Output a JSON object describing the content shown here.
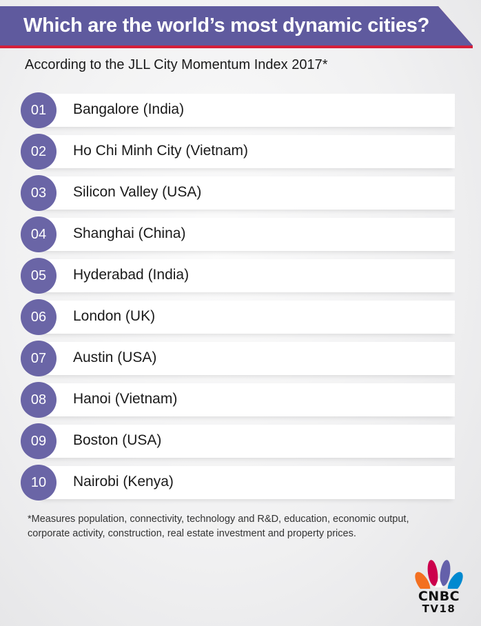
{
  "header": {
    "title": "Which are the world’s most dynamic cities?",
    "subtitle": "According to the JLL City Momentum Index 2017*",
    "banner_color": "#5f5a9e",
    "rule_color": "#d51f3a"
  },
  "ranking": [
    {
      "rank": "01",
      "city": "Bangalore (India)"
    },
    {
      "rank": "02",
      "city": "Ho Chi Minh City (Vietnam)"
    },
    {
      "rank": "03",
      "city": "Silicon Valley (USA)"
    },
    {
      "rank": "04",
      "city": "Shanghai (China)"
    },
    {
      "rank": "05",
      "city": "Hyderabad (India)"
    },
    {
      "rank": "06",
      "city": "London (UK)"
    },
    {
      "rank": "07",
      "city": "Austin (USA)"
    },
    {
      "rank": "08",
      "city": "Hanoi (Vietnam)"
    },
    {
      "rank": "09",
      "city": "Boston (USA)"
    },
    {
      "rank": "10",
      "city": "Nairobi (Kenya)"
    }
  ],
  "accent_color": "#6a65a6",
  "footnote": {
    "line1": "*Measures population, connectivity, technology and R&D, education, economic output,",
    "line2": "corporate activity, construction, real estate investment and property prices."
  },
  "logo": {
    "word1": "CNBC",
    "word2": "TV18",
    "icon": "peacock-icon"
  }
}
